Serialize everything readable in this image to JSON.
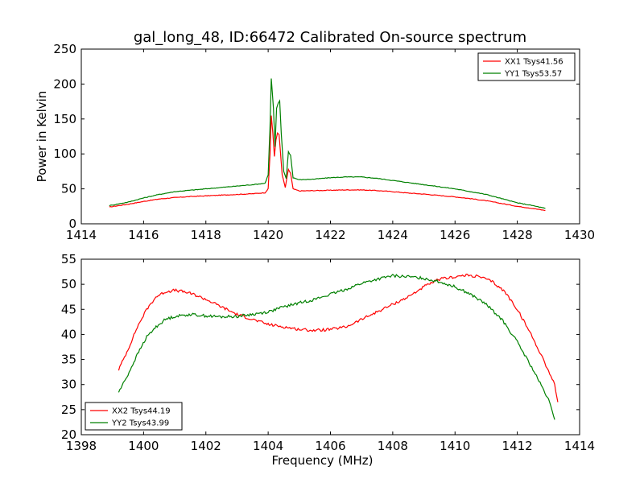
{
  "figure": {
    "title": "gal_long_48, ID:66472 Calibrated On-source spectrum"
  },
  "chart_data": [
    {
      "type": "line",
      "title": "gal_long_48, ID:66472 Calibrated On-source spectrum",
      "xlabel": "",
      "ylabel": "Power in Kelvin",
      "xlim": [
        1414,
        1430
      ],
      "ylim": [
        0,
        250
      ],
      "x_ticks": [
        "1414",
        "1416",
        "1418",
        "1420",
        "1422",
        "1424",
        "1426",
        "1428",
        "1430"
      ],
      "y_ticks": [
        "0",
        "50",
        "100",
        "150",
        "200",
        "250"
      ],
      "grid": false,
      "legend_position": "top-right",
      "series": [
        {
          "name": "XX1 Tsys41.56",
          "color": "#ff0000",
          "points": [
            [
              1414.9,
              24
            ],
            [
              1415.5,
              28
            ],
            [
              1416.0,
              32
            ],
            [
              1416.5,
              35.5
            ],
            [
              1417.0,
              37.5
            ],
            [
              1417.5,
              39
            ],
            [
              1418.0,
              40
            ],
            [
              1418.5,
              41
            ],
            [
              1419.0,
              42
            ],
            [
              1419.5,
              43
            ],
            [
              1419.9,
              44.5
            ],
            [
              1420.0,
              50
            ],
            [
              1420.06,
              100
            ],
            [
              1420.1,
              155
            ],
            [
              1420.15,
              130
            ],
            [
              1420.2,
              96
            ],
            [
              1420.25,
              120
            ],
            [
              1420.3,
              130
            ],
            [
              1420.35,
              128
            ],
            [
              1420.45,
              70
            ],
            [
              1420.55,
              52
            ],
            [
              1420.65,
              78
            ],
            [
              1420.72,
              72
            ],
            [
              1420.8,
              50
            ],
            [
              1421.0,
              47
            ],
            [
              1421.5,
              47.5
            ],
            [
              1422.0,
              48
            ],
            [
              1422.5,
              48.5
            ],
            [
              1423.0,
              48.5
            ],
            [
              1423.5,
              47.5
            ],
            [
              1424.0,
              46
            ],
            [
              1424.5,
              44
            ],
            [
              1425.0,
              42.5
            ],
            [
              1425.5,
              40.5
            ],
            [
              1426.0,
              38.5
            ],
            [
              1426.5,
              36
            ],
            [
              1427.0,
              33
            ],
            [
              1427.5,
              29
            ],
            [
              1428.0,
              25
            ],
            [
              1428.5,
              22
            ],
            [
              1428.9,
              19
            ]
          ]
        },
        {
          "name": "YY1 Tsys53.57",
          "color": "#008000",
          "points": [
            [
              1414.9,
              26
            ],
            [
              1415.5,
              31
            ],
            [
              1416.0,
              37
            ],
            [
              1416.5,
              42
            ],
            [
              1417.0,
              46
            ],
            [
              1417.5,
              48
            ],
            [
              1418.0,
              50
            ],
            [
              1418.5,
              52
            ],
            [
              1419.0,
              54
            ],
            [
              1419.5,
              56
            ],
            [
              1419.9,
              58
            ],
            [
              1420.0,
              70
            ],
            [
              1420.06,
              140
            ],
            [
              1420.1,
              208
            ],
            [
              1420.17,
              165
            ],
            [
              1420.22,
              110
            ],
            [
              1420.27,
              165
            ],
            [
              1420.32,
              172
            ],
            [
              1420.37,
              176
            ],
            [
              1420.42,
              130
            ],
            [
              1420.5,
              75
            ],
            [
              1420.58,
              65
            ],
            [
              1420.65,
              103
            ],
            [
              1420.72,
              98
            ],
            [
              1420.8,
              66
            ],
            [
              1421.0,
              63
            ],
            [
              1421.5,
              64
            ],
            [
              1422.0,
              66
            ],
            [
              1422.5,
              67
            ],
            [
              1423.0,
              67
            ],
            [
              1423.5,
              65
            ],
            [
              1424.0,
              62
            ],
            [
              1424.5,
              59
            ],
            [
              1425.0,
              56
            ],
            [
              1425.5,
              53
            ],
            [
              1426.0,
              50
            ],
            [
              1426.5,
              46
            ],
            [
              1427.0,
              42
            ],
            [
              1427.5,
              36
            ],
            [
              1428.0,
              30
            ],
            [
              1428.5,
              26
            ],
            [
              1428.9,
              22
            ]
          ]
        }
      ]
    },
    {
      "type": "line",
      "title": "",
      "xlabel": "Frequency (MHz)",
      "ylabel": "",
      "xlim": [
        1398,
        1414
      ],
      "ylim": [
        20,
        55
      ],
      "x_ticks": [
        "1398",
        "1400",
        "1402",
        "1404",
        "1406",
        "1408",
        "1410",
        "1412",
        "1414"
      ],
      "y_ticks": [
        "20",
        "25",
        "30",
        "35",
        "40",
        "45",
        "50",
        "55"
      ],
      "grid": false,
      "legend_position": "bottom-left",
      "series": [
        {
          "name": "XX2 Tsys44.19",
          "color": "#ff0000",
          "points": [
            [
              1399.2,
              33
            ],
            [
              1399.5,
              37
            ],
            [
              1399.8,
              41.5
            ],
            [
              1400.1,
              45
            ],
            [
              1400.4,
              47.5
            ],
            [
              1400.7,
              48.5
            ],
            [
              1401.0,
              48.8
            ],
            [
              1401.3,
              48.5
            ],
            [
              1401.6,
              48
            ],
            [
              1402.0,
              47
            ],
            [
              1402.5,
              45.5
            ],
            [
              1403.0,
              44
            ],
            [
              1403.5,
              43
            ],
            [
              1404.0,
              42
            ],
            [
              1404.5,
              41.5
            ],
            [
              1405.0,
              41
            ],
            [
              1405.5,
              40.8
            ],
            [
              1406.0,
              41
            ],
            [
              1406.5,
              41.5
            ],
            [
              1407.0,
              43
            ],
            [
              1407.5,
              44.5
            ],
            [
              1408.0,
              46
            ],
            [
              1408.5,
              47.5
            ],
            [
              1409.0,
              49.5
            ],
            [
              1409.5,
              51
            ],
            [
              1410.0,
              51.5
            ],
            [
              1410.4,
              51.8
            ],
            [
              1410.8,
              51.5
            ],
            [
              1411.2,
              50.5
            ],
            [
              1411.6,
              48.5
            ],
            [
              1412.0,
              45
            ],
            [
              1412.4,
              40.5
            ],
            [
              1412.8,
              35.5
            ],
            [
              1413.2,
              30
            ],
            [
              1413.3,
              26.5
            ]
          ]
        },
        {
          "name": "YY2 Tsys43.99",
          "color": "#008000",
          "points": [
            [
              1399.2,
              28.5
            ],
            [
              1399.5,
              32
            ],
            [
              1399.8,
              36
            ],
            [
              1400.1,
              39.5
            ],
            [
              1400.4,
              41.5
            ],
            [
              1400.7,
              43
            ],
            [
              1401.0,
              43.6
            ],
            [
              1401.5,
              44
            ],
            [
              1402.0,
              43.7
            ],
            [
              1402.5,
              43.5
            ],
            [
              1403.0,
              43.6
            ],
            [
              1403.5,
              44
            ],
            [
              1404.0,
              44.5
            ],
            [
              1404.5,
              45.5
            ],
            [
              1405.0,
              46.3
            ],
            [
              1405.5,
              47
            ],
            [
              1406.0,
              48
            ],
            [
              1406.5,
              49
            ],
            [
              1407.0,
              50.2
            ],
            [
              1407.5,
              51
            ],
            [
              1408.0,
              51.7
            ],
            [
              1408.5,
              51.5
            ],
            [
              1409.0,
              51.2
            ],
            [
              1409.5,
              50.5
            ],
            [
              1410.0,
              49.5
            ],
            [
              1410.5,
              48
            ],
            [
              1411.0,
              46
            ],
            [
              1411.5,
              43
            ],
            [
              1412.0,
              38.5
            ],
            [
              1412.5,
              33
            ],
            [
              1413.0,
              27
            ],
            [
              1413.2,
              23
            ]
          ]
        }
      ]
    }
  ]
}
